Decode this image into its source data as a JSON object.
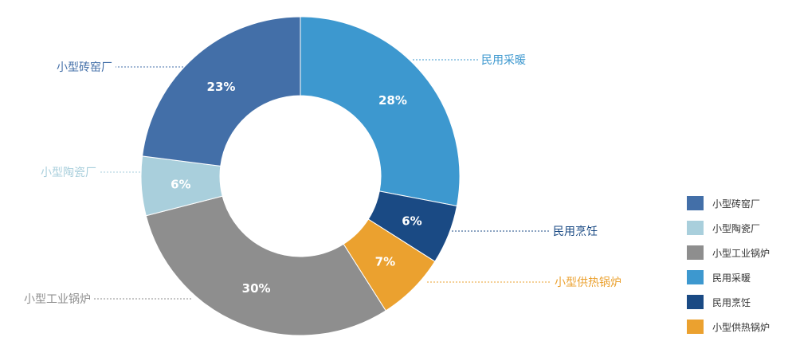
{
  "chart_data": {
    "type": "pie",
    "variant": "donut",
    "title": "",
    "slices": [
      {
        "label": "民用采暖",
        "value": 28,
        "value_label": "28%",
        "color": "#3d98cf"
      },
      {
        "label": "民用烹饪",
        "value": 6,
        "value_label": "6%",
        "color": "#1a4a84"
      },
      {
        "label": "小型供热锅炉",
        "value": 7,
        "value_label": "7%",
        "color": "#eba12f"
      },
      {
        "label": "小型工业锅炉",
        "value": 30,
        "value_label": "30%",
        "color": "#8e8e8e"
      },
      {
        "label": "小型陶瓷厂",
        "value": 6,
        "value_label": "6%",
        "color": "#a9cfdc"
      },
      {
        "label": "小型砖窑厂",
        "value": 23,
        "value_label": "23%",
        "color": "#436fa8"
      }
    ],
    "legend": {
      "position": "bottom-right",
      "entries": [
        "小型砖窑厂",
        "小型陶瓷厂",
        "小型工业锅炉",
        "民用采暖",
        "民用烹饪",
        "小型供热锅炉"
      ]
    }
  }
}
